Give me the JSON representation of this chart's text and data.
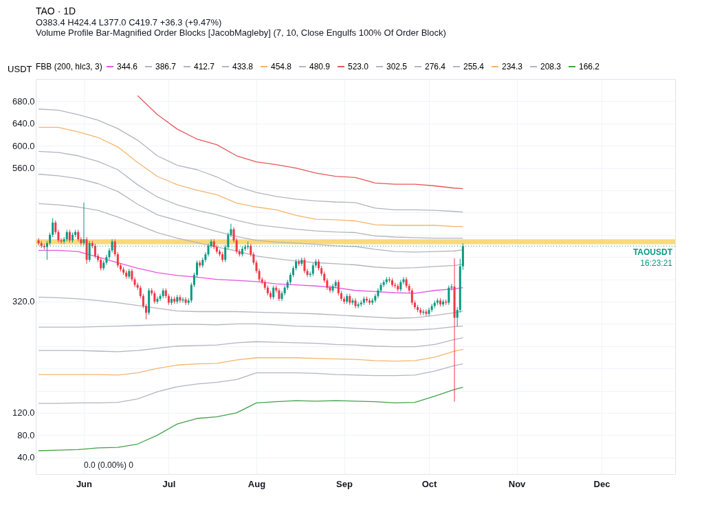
{
  "chart_data": {
    "type": "candlestick",
    "title": "TAO · 1D",
    "subtitle": "O383.4 H424.4 L377.0 C419.7 +36.3 (+9.47%)",
    "ylabel": "USDT",
    "legend_title": "FBB (200, hlc3, 3)",
    "legend": "top left",
    "grid": true,
    "annotations": [
      "Volume Profile Bar-Magnified Order Blocks [JacobMagleby] (7, 10, Close Engulfs 100% Of Order Block)",
      "16:23:21",
      "0.0 (0.00%) 0"
    ],
    "xlim": [
      "--05-15",
      "--12-27"
    ],
    "xticks": [
      {
        "value": "--06-01",
        "label": "Jun"
      },
      {
        "value": "--07-01",
        "label": "Jul"
      },
      {
        "value": "--08-01",
        "label": "Aug"
      },
      {
        "value": "--09-01",
        "label": "Sep"
      },
      {
        "value": "--10-01",
        "label": "Oct"
      },
      {
        "value": "--11-01",
        "label": "Nov"
      },
      {
        "value": "--12-01",
        "label": "Dec"
      }
    ],
    "ylim": [
      10,
      720
    ],
    "yticks": [
      {
        "value": 40,
        "label": "40.0"
      },
      {
        "value": 80,
        "label": "80.0"
      },
      {
        "value": 120,
        "label": "120.0"
      },
      {
        "value": 160,
        "label": null
      },
      {
        "value": 200,
        "label": null
      },
      {
        "value": 240,
        "label": null
      },
      {
        "value": 280,
        "label": null
      },
      {
        "value": 320,
        "label": "320.0"
      },
      {
        "value": 360,
        "label": null
      },
      {
        "value": 400,
        "label": null
      },
      {
        "value": 440,
        "label": null
      },
      {
        "value": 480,
        "label": null
      },
      {
        "value": 520,
        "label": null
      },
      {
        "value": 560,
        "label": "560.0"
      },
      {
        "value": 600,
        "label": "600.0"
      },
      {
        "value": 640,
        "label": "640.0"
      },
      {
        "value": 680,
        "label": "680.0"
      }
    ],
    "ref_lines": [
      {
        "axis": "y",
        "value": 419.7,
        "label": "TAOUSDT",
        "color": "#089981",
        "line_style": "dotted"
      }
    ],
    "bands": [
      {
        "axis": "y",
        "from": 423,
        "to": 432,
        "color": "#f7c948"
      }
    ],
    "x": [
      "--05-16",
      "--05-17",
      "--05-18",
      "--05-19",
      "--05-20",
      "--05-21",
      "--05-22",
      "--05-23",
      "--05-24",
      "--05-25",
      "--05-26",
      "--05-27",
      "--05-28",
      "--05-29",
      "--05-30",
      "--05-31",
      "--06-01",
      "--06-02",
      "--06-03",
      "--06-04",
      "--06-05",
      "--06-06",
      "--06-07",
      "--06-08",
      "--06-09",
      "--06-10",
      "--06-11",
      "--06-12",
      "--06-13",
      "--06-14",
      "--06-15",
      "--06-16",
      "--06-17",
      "--06-18",
      "--06-19",
      "--06-20",
      "--06-21",
      "--06-22",
      "--06-23",
      "--06-24",
      "--06-25",
      "--06-26",
      "--06-27",
      "--06-28",
      "--06-29",
      "--06-30",
      "--07-01",
      "--07-02",
      "--07-03",
      "--07-04",
      "--07-05",
      "--07-06",
      "--07-07",
      "--07-08",
      "--07-09",
      "--07-10",
      "--07-11",
      "--07-12",
      "--07-13",
      "--07-14",
      "--07-15",
      "--07-16",
      "--07-17",
      "--07-18",
      "--07-19",
      "--07-20",
      "--07-21",
      "--07-22",
      "--07-23",
      "--07-24",
      "--07-25",
      "--07-26",
      "--07-27",
      "--07-28",
      "--07-29",
      "--07-30",
      "--07-31",
      "--08-01",
      "--08-02",
      "--08-03",
      "--08-04",
      "--08-05",
      "--08-06",
      "--08-07",
      "--08-08",
      "--08-09",
      "--08-10",
      "--08-11",
      "--08-12",
      "--08-13",
      "--08-14",
      "--08-15",
      "--08-16",
      "--08-17",
      "--08-18",
      "--08-19",
      "--08-20",
      "--08-21",
      "--08-22",
      "--08-23",
      "--08-24",
      "--08-25",
      "--08-26",
      "--08-27",
      "--08-28",
      "--08-29",
      "--08-30",
      "--08-31",
      "--09-01",
      "--09-02",
      "--09-03",
      "--09-04",
      "--09-05",
      "--09-06",
      "--09-07",
      "--09-08",
      "--09-09",
      "--09-10",
      "--09-11",
      "--09-12",
      "--09-13",
      "--09-14",
      "--09-15",
      "--09-16",
      "--09-17",
      "--09-18",
      "--09-19",
      "--09-20",
      "--09-21",
      "--09-22",
      "--09-23",
      "--09-24",
      "--09-25",
      "--09-26",
      "--09-27",
      "--09-28",
      "--09-29",
      "--09-30",
      "--10-01",
      "--10-02",
      "--10-03",
      "--10-04",
      "--10-05",
      "--10-06",
      "--10-07",
      "--10-08",
      "--10-09",
      "--10-10",
      "--10-11",
      "--10-12",
      "--10-13"
    ],
    "ohlc": [
      [
        430,
        434,
        421,
        425
      ],
      [
        425,
        429,
        416,
        420
      ],
      [
        420,
        424,
        414,
        418
      ],
      [
        418,
        429,
        395,
        425
      ],
      [
        425,
        444,
        421,
        440
      ],
      [
        440,
        470,
        436,
        462
      ],
      [
        462,
        466,
        441,
        445
      ],
      [
        445,
        449,
        426,
        430
      ],
      [
        430,
        434,
        424,
        428
      ],
      [
        428,
        436,
        424,
        432
      ],
      [
        432,
        449,
        428,
        445
      ],
      [
        445,
        449,
        426,
        430
      ],
      [
        430,
        444,
        426,
        440
      ],
      [
        440,
        449,
        436,
        445
      ],
      [
        445,
        449,
        428,
        432
      ],
      [
        432,
        436,
        421,
        425
      ],
      [
        425,
        498,
        421,
        432
      ],
      [
        432,
        436,
        388,
        395
      ],
      [
        395,
        429,
        391,
        425
      ],
      [
        425,
        429,
        416,
        420
      ],
      [
        420,
        424,
        398,
        402
      ],
      [
        402,
        406,
        391,
        395
      ],
      [
        395,
        399,
        376,
        380
      ],
      [
        380,
        394,
        376,
        390
      ],
      [
        390,
        404,
        386,
        400
      ],
      [
        400,
        416,
        396,
        412
      ],
      [
        412,
        432,
        408,
        428
      ],
      [
        428,
        432,
        401,
        405
      ],
      [
        405,
        409,
        381,
        385
      ],
      [
        385,
        389,
        374,
        378
      ],
      [
        378,
        382,
        368,
        372
      ],
      [
        372,
        376,
        361,
        365
      ],
      [
        365,
        379,
        361,
        375
      ],
      [
        375,
        379,
        356,
        360
      ],
      [
        360,
        364,
        346,
        350
      ],
      [
        350,
        354,
        341,
        345
      ],
      [
        345,
        349,
        326,
        330
      ],
      [
        330,
        334,
        308,
        312
      ],
      [
        312,
        316,
        288,
        300
      ],
      [
        300,
        344,
        296,
        340
      ],
      [
        340,
        344,
        331,
        335
      ],
      [
        335,
        339,
        316,
        320
      ],
      [
        320,
        329,
        316,
        325
      ],
      [
        325,
        334,
        321,
        330
      ],
      [
        330,
        344,
        326,
        340
      ],
      [
        340,
        344,
        326,
        330
      ],
      [
        330,
        334,
        314,
        318
      ],
      [
        318,
        329,
        314,
        325
      ],
      [
        325,
        329,
        316,
        320
      ],
      [
        320,
        332,
        316,
        328
      ],
      [
        328,
        332,
        318,
        322
      ],
      [
        322,
        328,
        318,
        324
      ],
      [
        324,
        328,
        314,
        318
      ],
      [
        318,
        326,
        314,
        322
      ],
      [
        322,
        354,
        318,
        350
      ],
      [
        350,
        372,
        346,
        368
      ],
      [
        368,
        394,
        364,
        390
      ],
      [
        390,
        394,
        381,
        385
      ],
      [
        385,
        399,
        381,
        395
      ],
      [
        395,
        409,
        391,
        405
      ],
      [
        405,
        424,
        401,
        420
      ],
      [
        420,
        432,
        416,
        428
      ],
      [
        428,
        432,
        414,
        418
      ],
      [
        418,
        422,
        406,
        410
      ],
      [
        410,
        414,
        401,
        405
      ],
      [
        405,
        409,
        391,
        395
      ],
      [
        395,
        422,
        391,
        418
      ],
      [
        418,
        444,
        414,
        440
      ],
      [
        440,
        460,
        436,
        450
      ],
      [
        450,
        454,
        426,
        430
      ],
      [
        430,
        434,
        406,
        410
      ],
      [
        410,
        414,
        401,
        405
      ],
      [
        405,
        419,
        401,
        415
      ],
      [
        415,
        422,
        411,
        418
      ],
      [
        418,
        428,
        414,
        420
      ],
      [
        420,
        424,
        401,
        405
      ],
      [
        405,
        409,
        386,
        390
      ],
      [
        390,
        394,
        371,
        375
      ],
      [
        375,
        379,
        356,
        360
      ],
      [
        360,
        364,
        351,
        355
      ],
      [
        355,
        359,
        341,
        345
      ],
      [
        345,
        349,
        331,
        335
      ],
      [
        335,
        339,
        324,
        328
      ],
      [
        328,
        349,
        324,
        345
      ],
      [
        345,
        349,
        336,
        340
      ],
      [
        340,
        344,
        321,
        325
      ],
      [
        325,
        339,
        321,
        335
      ],
      [
        335,
        349,
        331,
        345
      ],
      [
        345,
        359,
        341,
        355
      ],
      [
        355,
        372,
        351,
        368
      ],
      [
        368,
        384,
        364,
        380
      ],
      [
        380,
        396,
        376,
        392
      ],
      [
        392,
        396,
        384,
        388
      ],
      [
        388,
        399,
        384,
        395
      ],
      [
        395,
        399,
        371,
        375
      ],
      [
        375,
        379,
        364,
        368
      ],
      [
        368,
        374,
        364,
        370
      ],
      [
        370,
        389,
        366,
        385
      ],
      [
        385,
        396,
        381,
        392
      ],
      [
        392,
        396,
        376,
        380
      ],
      [
        380,
        384,
        366,
        370
      ],
      [
        370,
        374,
        354,
        358
      ],
      [
        358,
        362,
        341,
        345
      ],
      [
        345,
        349,
        336,
        340
      ],
      [
        340,
        352,
        336,
        348
      ],
      [
        348,
        359,
        344,
        355
      ],
      [
        355,
        359,
        331,
        335
      ],
      [
        335,
        339,
        321,
        325
      ],
      [
        325,
        329,
        316,
        320
      ],
      [
        320,
        334,
        316,
        330
      ],
      [
        330,
        334,
        314,
        318
      ],
      [
        318,
        326,
        314,
        322
      ],
      [
        322,
        326,
        308,
        312
      ],
      [
        312,
        319,
        308,
        315
      ],
      [
        315,
        322,
        311,
        318
      ],
      [
        318,
        329,
        314,
        325
      ],
      [
        325,
        329,
        318,
        322
      ],
      [
        322,
        326,
        314,
        318
      ],
      [
        318,
        326,
        314,
        322
      ],
      [
        322,
        334,
        318,
        330
      ],
      [
        330,
        344,
        326,
        340
      ],
      [
        340,
        354,
        336,
        350
      ],
      [
        350,
        359,
        346,
        355
      ],
      [
        355,
        364,
        351,
        360
      ],
      [
        360,
        364,
        354,
        358
      ],
      [
        358,
        362,
        346,
        350
      ],
      [
        350,
        354,
        344,
        348
      ],
      [
        348,
        352,
        338,
        342
      ],
      [
        342,
        359,
        338,
        355
      ],
      [
        355,
        364,
        351,
        360
      ],
      [
        360,
        364,
        344,
        348
      ],
      [
        348,
        352,
        336,
        340
      ],
      [
        340,
        344,
        314,
        318
      ],
      [
        318,
        322,
        306,
        310
      ],
      [
        310,
        314,
        301,
        305
      ],
      [
        305,
        309,
        296,
        300
      ],
      [
        300,
        306,
        296,
        302
      ],
      [
        302,
        306,
        294,
        298
      ],
      [
        298,
        309,
        294,
        305
      ],
      [
        305,
        316,
        301,
        312
      ],
      [
        312,
        322,
        308,
        318
      ],
      [
        318,
        326,
        314,
        322
      ],
      [
        322,
        326,
        311,
        315
      ],
      [
        315,
        324,
        311,
        320
      ],
      [
        320,
        324,
        314,
        318
      ],
      [
        318,
        349,
        314,
        345
      ],
      [
        345,
        352,
        340,
        347
      ],
      [
        347,
        398,
        140,
        291
      ],
      [
        291,
        310,
        275,
        305
      ],
      [
        305,
        397,
        300,
        383.4
      ],
      [
        383.4,
        424.4,
        377.0,
        419.7
      ]
    ],
    "colors": [
      "#f23645",
      "#f23645",
      "#f23645",
      "#089981",
      "#089981",
      "#089981",
      "#f23645",
      "#f23645",
      "#f23645",
      "#089981",
      "#089981",
      "#f23645",
      "#089981",
      "#089981",
      "#f23645",
      "#f23645",
      "#089981",
      "#f23645",
      "#089981",
      "#f23645",
      "#f23645",
      "#f23645",
      "#f23645",
      "#089981",
      "#089981",
      "#089981",
      "#089981",
      "#f23645",
      "#f23645",
      "#f23645",
      "#f23645",
      "#f23645",
      "#089981",
      "#f23645",
      "#f23645",
      "#f23645",
      "#f23645",
      "#f23645",
      "#f23645",
      "#089981",
      "#f23645",
      "#f23645",
      "#089981",
      "#089981",
      "#089981",
      "#f23645",
      "#f23645",
      "#089981",
      "#f23645",
      "#089981",
      "#f23645",
      "#089981",
      "#f23645",
      "#089981",
      "#089981",
      "#089981",
      "#089981",
      "#f23645",
      "#089981",
      "#089981",
      "#089981",
      "#089981",
      "#f23645",
      "#f23645",
      "#f23645",
      "#f23645",
      "#089981",
      "#089981",
      "#089981",
      "#f23645",
      "#f23645",
      "#f23645",
      "#089981",
      "#089981",
      "#089981",
      "#f23645",
      "#f23645",
      "#f23645",
      "#f23645",
      "#f23645",
      "#f23645",
      "#f23645",
      "#f23645",
      "#089981",
      "#f23645",
      "#f23645",
      "#089981",
      "#089981",
      "#089981",
      "#089981",
      "#089981",
      "#089981",
      "#f23645",
      "#089981",
      "#f23645",
      "#f23645",
      "#089981",
      "#089981",
      "#089981",
      "#f23645",
      "#f23645",
      "#f23645",
      "#f23645",
      "#f23645",
      "#089981",
      "#089981",
      "#f23645",
      "#f23645",
      "#f23645",
      "#089981",
      "#f23645",
      "#089981",
      "#f23645",
      "#089981",
      "#089981",
      "#089981",
      "#f23645",
      "#f23645",
      "#089981",
      "#089981",
      "#089981",
      "#089981",
      "#089981",
      "#089981",
      "#f23645",
      "#f23645",
      "#f23645",
      "#f23645",
      "#089981",
      "#089981",
      "#f23645",
      "#f23645",
      "#f23645",
      "#f23645",
      "#f23645",
      "#f23645",
      "#089981",
      "#f23645",
      "#089981",
      "#089981",
      "#089981",
      "#089981",
      "#f23645",
      "#089981",
      "#f23645",
      "#089981",
      "#089981",
      "#f23645",
      "#089981",
      "#089981",
      "#089981"
    ],
    "series": [
      {
        "type": "line",
        "name": "344.6",
        "color": "#e555e0",
        "x": [
          "--05-16",
          "--05-23",
          "--05-30",
          "--06-06",
          "--06-13",
          "--06-20",
          "--06-27",
          "--07-04",
          "--07-11",
          "--07-18",
          "--07-25",
          "--08-01",
          "--08-08",
          "--08-15",
          "--08-22",
          "--08-29",
          "--09-05",
          "--09-12",
          "--09-19",
          "--09-26",
          "--10-03",
          "--10-10",
          "--10-13"
        ],
        "values": [
          412,
          412,
          410,
          400,
          390,
          380,
          372,
          367,
          364,
          360,
          358,
          356,
          352,
          350,
          348,
          345,
          340,
          338,
          336,
          335,
          340,
          343,
          345
        ]
      },
      {
        "type": "line",
        "name": "386.7",
        "color": "#b2b5be",
        "x": [
          "--05-16",
          "--05-23",
          "--05-30",
          "--06-06",
          "--06-13",
          "--06-20",
          "--06-27",
          "--07-04",
          "--07-11",
          "--07-18",
          "--07-25",
          "--08-01",
          "--08-08",
          "--08-15",
          "--08-22",
          "--08-29",
          "--09-05",
          "--09-12",
          "--09-19",
          "--09-26",
          "--10-03",
          "--10-10",
          "--10-13"
        ],
        "values": [
          496,
          494,
          490,
          484,
          472,
          458,
          444,
          434,
          426,
          418,
          411,
          402,
          397,
          393,
          390,
          388,
          386,
          382,
          380,
          381,
          383,
          385,
          387
        ]
      },
      {
        "type": "line",
        "name": "412.7",
        "color": "#b2b5be",
        "x": [
          "--05-16",
          "--05-23",
          "--05-30",
          "--06-06",
          "--06-13",
          "--06-20",
          "--06-27",
          "--07-04",
          "--07-11",
          "--07-18",
          "--07-25",
          "--08-01",
          "--08-08",
          "--08-15",
          "--08-22",
          "--08-29",
          "--09-05",
          "--09-12",
          "--09-19",
          "--09-26",
          "--10-03",
          "--10-10",
          "--10-13"
        ],
        "values": [
          549,
          546,
          541,
          532,
          518,
          495,
          476,
          466,
          456,
          446,
          437,
          430,
          427,
          425,
          423,
          420,
          419,
          414,
          410,
          409,
          410,
          411,
          413
        ]
      },
      {
        "type": "line",
        "name": "433.8",
        "color": "#b2b5be",
        "x": [
          "--05-16",
          "--05-23",
          "--05-30",
          "--06-06",
          "--06-13",
          "--06-20",
          "--06-27",
          "--07-04",
          "--07-11",
          "--07-18",
          "--07-25",
          "--08-01",
          "--08-08",
          "--08-15",
          "--08-22",
          "--08-29",
          "--09-05",
          "--09-12",
          "--09-19",
          "--09-26",
          "--10-03",
          "--10-10",
          "--10-13"
        ],
        "values": [
          590,
          588,
          582,
          572,
          557,
          530,
          508,
          494,
          484,
          476,
          466,
          458,
          454,
          450,
          447,
          445,
          444,
          438,
          436,
          435,
          434,
          434,
          434
        ]
      },
      {
        "type": "line",
        "name": "454.8",
        "color": "#f5b46b",
        "x": [
          "--05-16",
          "--05-23",
          "--05-30",
          "--06-06",
          "--06-13",
          "--06-20",
          "--06-27",
          "--07-04",
          "--07-11",
          "--07-18",
          "--07-25",
          "--08-01",
          "--08-08",
          "--08-15",
          "--08-22",
          "--08-29",
          "--09-05",
          "--09-12",
          "--09-19",
          "--09-26",
          "--10-03",
          "--10-10",
          "--10-13"
        ],
        "values": [
          633,
          633,
          625,
          615,
          598,
          570,
          545,
          530,
          520,
          512,
          497,
          490,
          485,
          475,
          468,
          467,
          465,
          458,
          457,
          457,
          457,
          455,
          455
        ]
      },
      {
        "type": "line",
        "name": "480.9",
        "color": "#b2b5be",
        "x": [
          "--05-16",
          "--05-23",
          "--05-30",
          "--06-06",
          "--06-13",
          "--06-20",
          "--06-27",
          "--07-04",
          "--07-11",
          "--07-18",
          "--07-25",
          "--08-01",
          "--08-08",
          "--08-15",
          "--08-22",
          "--08-29",
          "--09-05",
          "--09-12",
          "--09-19",
          "--09-26",
          "--10-03",
          "--10-10",
          "--10-13"
        ],
        "values": [
          666,
          664,
          656,
          646,
          631,
          610,
          582,
          565,
          557,
          544,
          527,
          516,
          509,
          504,
          501,
          499,
          498,
          488,
          485,
          485,
          484,
          482,
          481
        ]
      },
      {
        "type": "line",
        "name": "523.0",
        "color": "#e85656",
        "x": [
          "--06-20",
          "--06-27",
          "--07-04",
          "--07-11",
          "--07-18",
          "--07-25",
          "--08-01",
          "--08-08",
          "--08-15",
          "--08-22",
          "--08-29",
          "--09-05",
          "--09-12",
          "--09-19",
          "--09-26",
          "--10-03",
          "--10-10",
          "--10-13"
        ],
        "values": [
          690,
          656,
          630,
          612,
          602,
          582,
          571,
          566,
          560,
          551,
          545,
          543,
          533,
          531,
          531,
          528,
          524,
          523
        ]
      },
      {
        "type": "line",
        "name": "302.5",
        "color": "#b2b5be",
        "x": [
          "--05-16",
          "--05-23",
          "--05-30",
          "--06-06",
          "--06-13",
          "--06-20",
          "--06-27",
          "--07-04",
          "--07-11",
          "--07-18",
          "--07-25",
          "--08-01",
          "--08-08",
          "--08-15",
          "--08-22",
          "--08-29",
          "--09-05",
          "--09-12",
          "--09-19",
          "--09-26",
          "--10-03",
          "--10-10",
          "--10-13"
        ],
        "values": [
          328,
          327,
          325,
          322,
          318,
          313,
          308,
          303,
          302,
          302,
          302,
          301,
          300,
          299,
          298,
          296,
          294,
          292,
          290,
          291,
          295,
          300,
          303
        ]
      },
      {
        "type": "line",
        "name": "276.4",
        "color": "#b2b5be",
        "x": [
          "--05-16",
          "--05-23",
          "--05-30",
          "--06-06",
          "--06-13",
          "--06-20",
          "--06-27",
          "--07-04",
          "--07-11",
          "--07-18",
          "--07-25",
          "--08-01",
          "--08-08",
          "--08-15",
          "--08-22",
          "--08-29",
          "--09-05",
          "--09-12",
          "--09-19",
          "--09-26",
          "--10-03",
          "--10-10",
          "--10-13"
        ],
        "values": [
          274,
          274,
          274,
          275,
          276,
          277,
          278,
          279,
          279,
          278,
          280,
          280,
          278,
          276,
          275,
          274,
          272,
          270,
          269,
          269,
          271,
          275,
          276
        ]
      },
      {
        "type": "line",
        "name": "255.4",
        "color": "#b2b5be",
        "x": [
          "--05-16",
          "--05-23",
          "--05-30",
          "--06-06",
          "--06-13",
          "--06-20",
          "--06-27",
          "--07-04",
          "--07-11",
          "--07-18",
          "--07-25",
          "--08-01",
          "--08-08",
          "--08-15",
          "--08-22",
          "--08-29",
          "--09-05",
          "--09-12",
          "--09-19",
          "--09-26",
          "--10-03",
          "--10-10",
          "--10-13"
        ],
        "values": [
          232,
          232,
          232,
          231,
          230,
          232,
          236,
          240,
          241,
          242,
          246,
          248,
          247,
          246,
          245,
          243,
          242,
          240,
          239,
          239,
          243,
          252,
          255
        ]
      },
      {
        "type": "line",
        "name": "234.3",
        "color": "#f5b46b",
        "x": [
          "--05-16",
          "--05-23",
          "--05-30",
          "--06-06",
          "--06-13",
          "--06-20",
          "--06-27",
          "--07-04",
          "--07-11",
          "--07-18",
          "--07-25",
          "--08-01",
          "--08-08",
          "--08-15",
          "--08-22",
          "--08-29",
          "--09-05",
          "--09-12",
          "--09-19",
          "--09-26",
          "--10-03",
          "--10-10",
          "--10-13"
        ],
        "values": [
          189,
          189,
          189,
          189,
          188,
          192,
          200,
          206,
          208,
          209,
          215,
          219,
          219,
          219,
          218,
          217,
          216,
          214,
          213,
          214,
          220,
          231,
          234
        ]
      },
      {
        "type": "line",
        "name": "208.3",
        "color": "#b2b5be",
        "x": [
          "--05-16",
          "--05-23",
          "--05-30",
          "--06-06",
          "--06-13",
          "--06-20",
          "--06-27",
          "--07-04",
          "--07-11",
          "--07-18",
          "--07-25",
          "--08-01",
          "--08-08",
          "--08-15",
          "--08-22",
          "--08-29",
          "--09-05",
          "--09-12",
          "--09-19",
          "--09-26",
          "--10-03",
          "--10-10",
          "--10-13"
        ],
        "values": [
          137,
          137,
          138,
          138,
          139,
          145,
          158,
          167,
          172,
          175,
          180,
          192,
          192,
          192,
          191,
          189,
          188,
          187,
          187,
          188,
          195,
          205,
          208
        ]
      },
      {
        "type": "line",
        "name": "166.2",
        "color": "#43a047",
        "x": [
          "--05-16",
          "--05-23",
          "--05-30",
          "--06-06",
          "--06-13",
          "--06-20",
          "--06-27",
          "--07-04",
          "--07-11",
          "--07-18",
          "--07-25",
          "--08-01",
          "--08-08",
          "--08-15",
          "--08-22",
          "--08-29",
          "--09-05",
          "--09-12",
          "--09-19",
          "--09-26",
          "--10-03",
          "--10-10",
          "--10-13"
        ],
        "values": [
          52,
          53,
          54,
          57,
          58,
          64,
          80,
          100,
          110,
          113,
          120,
          138,
          140,
          142,
          141,
          142,
          141,
          140,
          138,
          139,
          150,
          162,
          166
        ]
      }
    ]
  }
}
